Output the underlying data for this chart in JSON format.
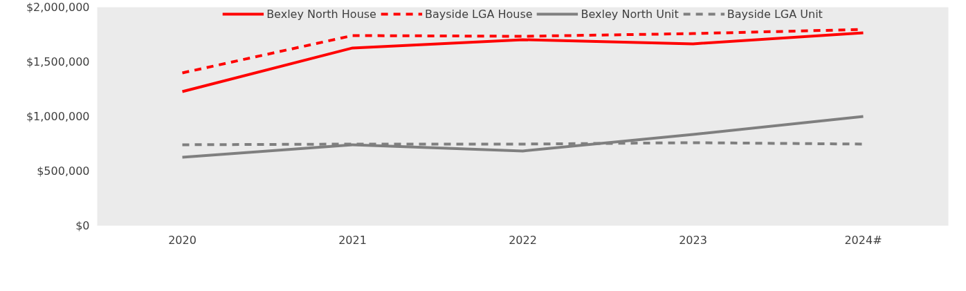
{
  "chart_data": {
    "type": "line",
    "categories": [
      "2020",
      "2021",
      "2022",
      "2023",
      "2024#"
    ],
    "series": [
      {
        "name": "Bexley North House",
        "color": "#ff0000",
        "line_style": "solid",
        "values": [
          1228000,
          1627000,
          1703000,
          1665000,
          1766000
        ]
      },
      {
        "name": "Bayside LGA House",
        "color": "#ff0000",
        "line_style": "dashed",
        "values": [
          1399000,
          1741000,
          1734000,
          1759000,
          1797000
        ]
      },
      {
        "name": "Bexley North Unit",
        "color": "#7f7f7f",
        "line_style": "solid",
        "values": [
          627000,
          741000,
          684000,
          835000,
          1000000
        ]
      },
      {
        "name": "Bayside LGA Unit",
        "color": "#7f7f7f",
        "line_style": "dashed",
        "values": [
          741000,
          747000,
          747000,
          760000,
          747000
        ]
      }
    ],
    "ylim": [
      0,
      2000000
    ],
    "yticks": [
      {
        "value": 0,
        "label": "$0"
      },
      {
        "value": 500000,
        "label": "$500,000"
      },
      {
        "value": 1000000,
        "label": "$1,000,000"
      },
      {
        "value": 1500000,
        "label": "$1,500,000"
      },
      {
        "value": 2000000,
        "label": "$2,000,000"
      }
    ],
    "grid": false,
    "legend": "top",
    "marker": "none"
  }
}
